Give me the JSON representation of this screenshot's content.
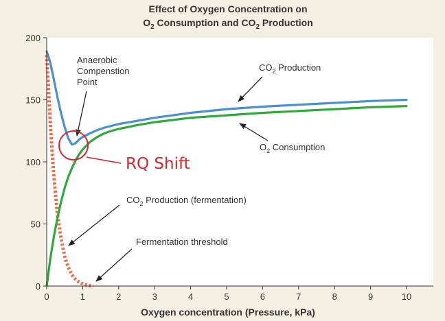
{
  "chart_data": {
    "type": "line",
    "title_line1": "Effect of Oxygen Concentration on",
    "title_line2": {
      "a": "O",
      "sub_a": "2",
      "b": " Consumption and CO",
      "sub_b": "2",
      "c": " Production"
    },
    "xlabel": "Oxygen concentration (Pressure, kPa)",
    "ylabel": "",
    "xlim": [
      0,
      10
    ],
    "ylim": [
      0,
      200
    ],
    "xticks": [
      "0",
      "1",
      "2",
      "3",
      "4",
      "5",
      "6",
      "7",
      "8",
      "9",
      "10"
    ],
    "yticks": [
      "0",
      "50",
      "100",
      "150",
      "200"
    ],
    "grid": false,
    "colors": {
      "co2": "#4a8fd0",
      "o2": "#2eaa3c",
      "fermentation": "#f06a4a",
      "rq": "#d9252a",
      "background": "#ffffff",
      "page": "#f3efe3"
    },
    "series": [
      {
        "name": "CO2 Production",
        "style": "solid",
        "x": [
          0,
          0.1,
          0.2,
          0.3,
          0.4,
          0.5,
          0.6,
          0.7,
          0.8,
          0.9,
          1.0,
          1.2,
          1.4,
          1.6,
          1.8,
          2,
          2.5,
          3,
          4,
          5,
          6,
          7,
          8,
          9,
          10
        ],
        "y": [
          189,
          180,
          166,
          152,
          139,
          128,
          119,
          114,
          115,
          118,
          120,
          123,
          125.5,
          127.5,
          129,
          130.5,
          133,
          135.5,
          139.5,
          142.5,
          144.5,
          146,
          147.5,
          149,
          150
        ]
      },
      {
        "name": "O2 Consumption",
        "style": "solid",
        "x": [
          0,
          0.1,
          0.2,
          0.3,
          0.4,
          0.5,
          0.6,
          0.7,
          0.8,
          0.9,
          1.0,
          1.2,
          1.4,
          1.6,
          1.8,
          2,
          2.5,
          3,
          4,
          5,
          6,
          7,
          8,
          9,
          10
        ],
        "y": [
          0,
          22,
          40,
          55,
          68,
          79,
          88,
          95,
          101,
          106,
          110,
          116,
          120,
          123,
          125,
          126.5,
          129.5,
          132,
          135.5,
          137.5,
          139.5,
          141,
          142.5,
          144,
          145
        ]
      },
      {
        "name": "CO2 Production (fermentation)",
        "style": "dotted",
        "x": [
          0,
          0.05,
          0.1,
          0.15,
          0.2,
          0.3,
          0.4,
          0.5,
          0.6,
          0.7,
          0.8,
          0.9,
          1.0,
          1.1,
          1.2,
          1.3
        ],
        "y": [
          186,
          160,
          132,
          108,
          88,
          58,
          38,
          24,
          15,
          9,
          5.5,
          3.2,
          1.8,
          0.8,
          0.3,
          0
        ]
      }
    ],
    "annotations": {
      "anaerobic": [
        "Anaerobic",
        "Compenstion",
        "Point"
      ],
      "co2_label": {
        "a": "CO",
        "sub": "2",
        "b": " Production"
      },
      "o2_label": {
        "a": "O",
        "sub": "2",
        "b": " Consumption"
      },
      "fermentation_label": {
        "a": "CO",
        "sub": "2",
        "b": " Production (fermentation)"
      },
      "threshold_label": "Fermentation threshold",
      "rq_label": "RQ Shift"
    }
  }
}
